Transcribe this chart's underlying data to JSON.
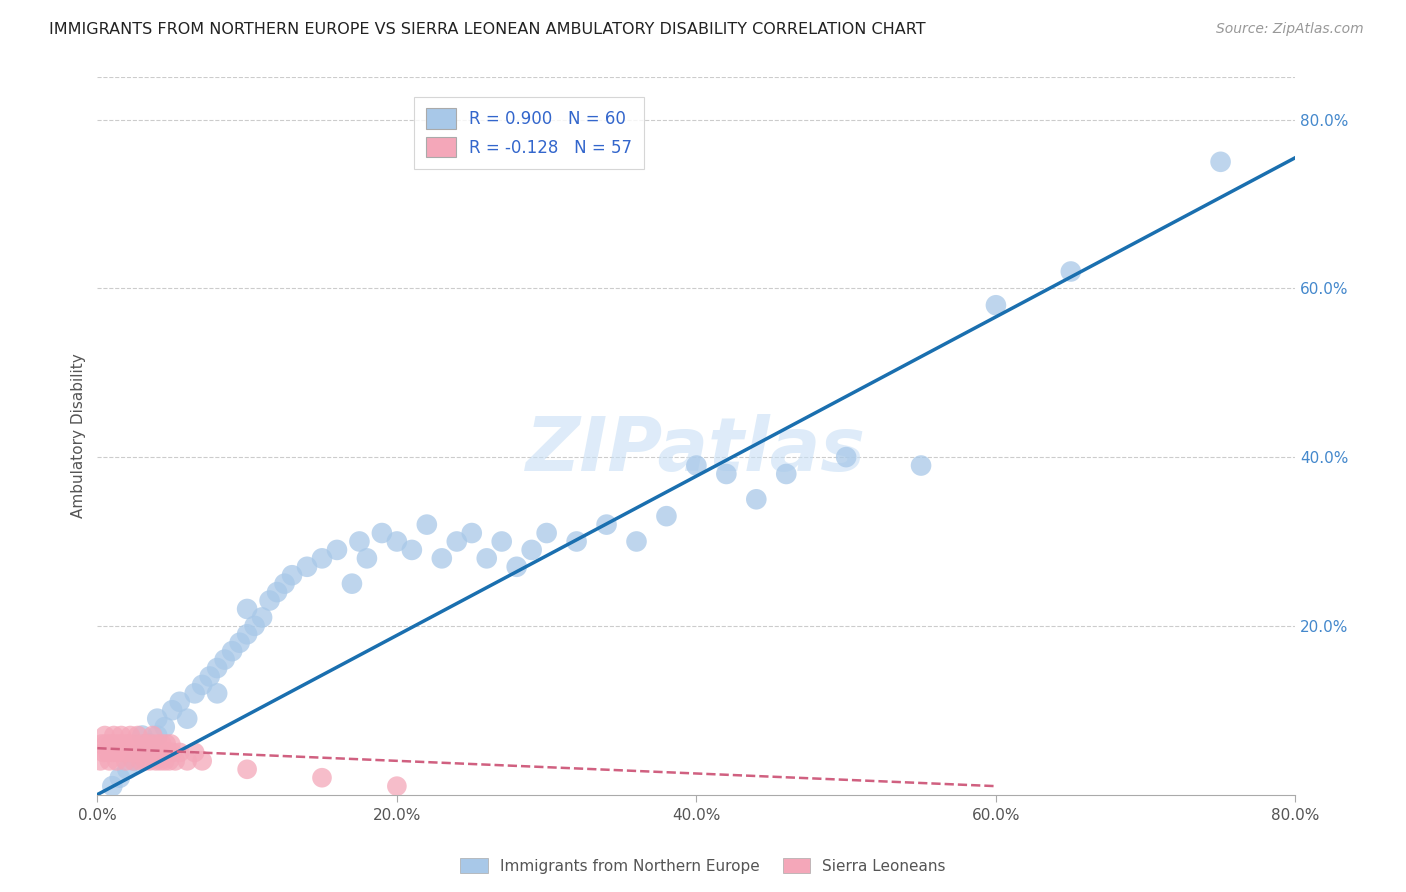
{
  "title": "IMMIGRANTS FROM NORTHERN EUROPE VS SIERRA LEONEAN AMBULATORY DISABILITY CORRELATION CHART",
  "source": "Source: ZipAtlas.com",
  "ylabel": "Ambulatory Disability",
  "xlim": [
    0,
    0.8
  ],
  "ylim": [
    0,
    0.85
  ],
  "xtick_labels": [
    "0.0%",
    "20.0%",
    "40.0%",
    "60.0%",
    "80.0%"
  ],
  "xtick_vals": [
    0,
    0.2,
    0.4,
    0.6,
    0.8
  ],
  "ytick_labels": [
    "20.0%",
    "40.0%",
    "60.0%",
    "80.0%"
  ],
  "ytick_vals": [
    0.2,
    0.4,
    0.6,
    0.8
  ],
  "watermark": "ZIPatlas",
  "legend1_label": "R = 0.900   N = 60",
  "legend2_label": "R = -0.128   N = 57",
  "blue_color": "#a8c8e8",
  "pink_color": "#f4a7b9",
  "blue_line_color": "#1a6faf",
  "pink_line_color": "#d06080",
  "blue_x": [
    0.01,
    0.015,
    0.02,
    0.025,
    0.03,
    0.03,
    0.035,
    0.04,
    0.04,
    0.045,
    0.05,
    0.055,
    0.06,
    0.065,
    0.07,
    0.075,
    0.08,
    0.08,
    0.085,
    0.09,
    0.095,
    0.1,
    0.1,
    0.105,
    0.11,
    0.115,
    0.12,
    0.125,
    0.13,
    0.14,
    0.15,
    0.16,
    0.17,
    0.175,
    0.18,
    0.19,
    0.2,
    0.21,
    0.22,
    0.23,
    0.24,
    0.25,
    0.26,
    0.27,
    0.28,
    0.29,
    0.3,
    0.32,
    0.34,
    0.36,
    0.38,
    0.4,
    0.42,
    0.44,
    0.46,
    0.5,
    0.55,
    0.6,
    0.65,
    0.75
  ],
  "blue_y": [
    0.01,
    0.02,
    0.03,
    0.04,
    0.05,
    0.07,
    0.06,
    0.07,
    0.09,
    0.08,
    0.1,
    0.11,
    0.09,
    0.12,
    0.13,
    0.14,
    0.15,
    0.12,
    0.16,
    0.17,
    0.18,
    0.19,
    0.22,
    0.2,
    0.21,
    0.23,
    0.24,
    0.25,
    0.26,
    0.27,
    0.28,
    0.29,
    0.25,
    0.3,
    0.28,
    0.31,
    0.3,
    0.29,
    0.32,
    0.28,
    0.3,
    0.31,
    0.28,
    0.3,
    0.27,
    0.29,
    0.31,
    0.3,
    0.32,
    0.3,
    0.33,
    0.39,
    0.38,
    0.35,
    0.38,
    0.4,
    0.39,
    0.58,
    0.62,
    0.75
  ],
  "pink_x": [
    0.002,
    0.003,
    0.004,
    0.005,
    0.006,
    0.007,
    0.008,
    0.009,
    0.01,
    0.011,
    0.012,
    0.013,
    0.014,
    0.015,
    0.016,
    0.017,
    0.018,
    0.019,
    0.02,
    0.021,
    0.022,
    0.023,
    0.024,
    0.025,
    0.026,
    0.027,
    0.028,
    0.029,
    0.03,
    0.031,
    0.032,
    0.033,
    0.034,
    0.035,
    0.036,
    0.037,
    0.038,
    0.039,
    0.04,
    0.041,
    0.042,
    0.043,
    0.044,
    0.045,
    0.046,
    0.047,
    0.048,
    0.049,
    0.05,
    0.052,
    0.055,
    0.06,
    0.065,
    0.07,
    0.1,
    0.15,
    0.2
  ],
  "pink_y": [
    0.04,
    0.06,
    0.05,
    0.07,
    0.06,
    0.05,
    0.04,
    0.06,
    0.05,
    0.07,
    0.06,
    0.04,
    0.05,
    0.06,
    0.07,
    0.05,
    0.06,
    0.04,
    0.05,
    0.06,
    0.07,
    0.05,
    0.04,
    0.06,
    0.05,
    0.07,
    0.05,
    0.04,
    0.06,
    0.05,
    0.04,
    0.06,
    0.05,
    0.04,
    0.06,
    0.07,
    0.05,
    0.04,
    0.06,
    0.05,
    0.04,
    0.06,
    0.05,
    0.04,
    0.06,
    0.05,
    0.04,
    0.06,
    0.05,
    0.04,
    0.05,
    0.04,
    0.05,
    0.04,
    0.03,
    0.02,
    0.01
  ],
  "blue_line_x": [
    0.0,
    0.8
  ],
  "blue_line_y": [
    0.0,
    0.755
  ],
  "pink_line_x": [
    0.0,
    0.6
  ],
  "pink_line_y": [
    0.055,
    0.01
  ]
}
